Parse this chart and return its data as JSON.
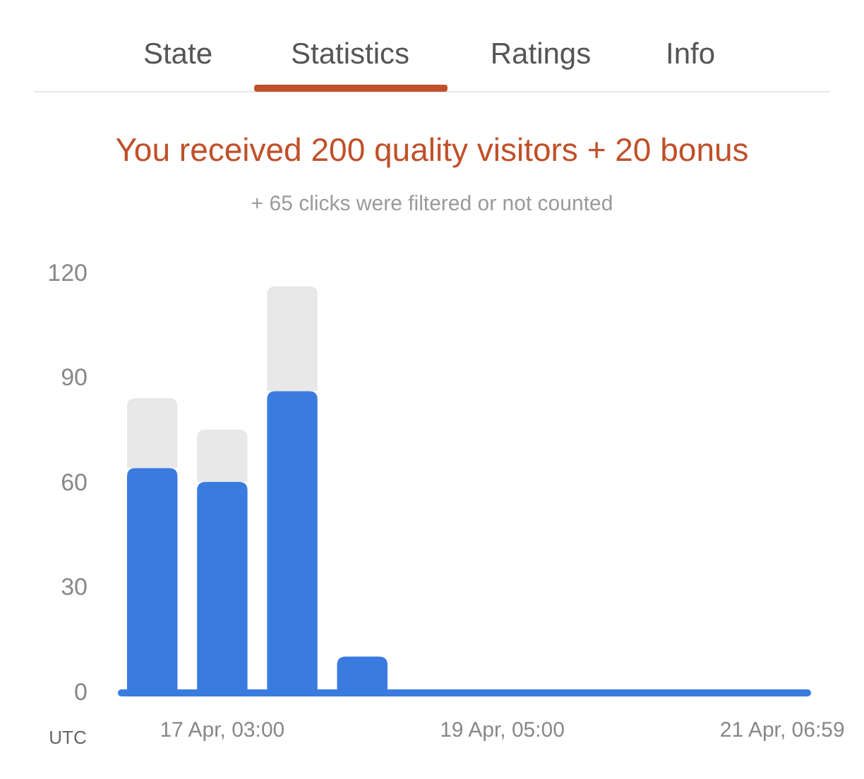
{
  "chart_data": {
    "type": "bar",
    "title": "You received 200 quality visitors + 20 bonus",
    "subtitle": "+ 65 clicks were filtered or not counted",
    "xlabel": "UTC",
    "annotations": [
      "State",
      "Statistics",
      "Ratings",
      "Info"
    ],
    "categories": [
      null,
      "17 Apr, 03:00",
      null,
      null,
      null,
      "19 Apr, 05:00",
      null,
      null,
      null,
      "21 Apr, 06:59"
    ],
    "stacked": true,
    "series": [
      {
        "color": "#3a7be0",
        "values": [
          64,
          60,
          86,
          10,
          0,
          0,
          0,
          0,
          0,
          0
        ]
      },
      {
        "color": "#e8e8e8",
        "values": [
          20,
          15,
          30,
          0,
          0,
          0,
          0,
          0,
          0,
          0
        ]
      }
    ],
    "ylim": [
      0,
      120
    ],
    "yticks": [
      0,
      30,
      60,
      90,
      120
    ],
    "grid": false
  }
}
